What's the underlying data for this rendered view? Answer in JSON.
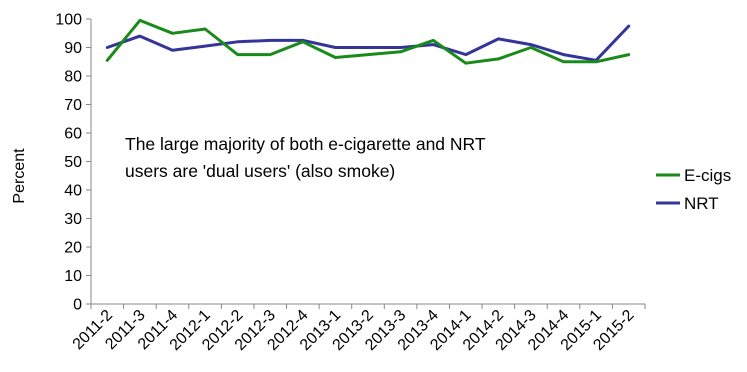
{
  "chart_data": {
    "type": "line",
    "title": "",
    "xlabel": "",
    "ylabel": "Percent",
    "ylim": [
      0,
      100
    ],
    "yticks": [
      0,
      10,
      20,
      30,
      40,
      50,
      60,
      70,
      80,
      90,
      100
    ],
    "grid": false,
    "legend_position": "right",
    "categories": [
      "2011-2",
      "2011-3",
      "2011-4",
      "2012-1",
      "2012-2",
      "2012-3",
      "2012-4",
      "2013-1",
      "2013-2",
      "2013-3",
      "2013-4",
      "2014-1",
      "2014-2",
      "2014-3",
      "2014-4",
      "2015-1",
      "2015-2"
    ],
    "series": [
      {
        "name": "E-cigs",
        "color": "#1a8a1a",
        "values": [
          85.5,
          99.5,
          95,
          96.5,
          87.5,
          87.5,
          92,
          86.5,
          87.5,
          88.5,
          92.5,
          84.5,
          86,
          90,
          85,
          85,
          87.5
        ]
      },
      {
        "name": "NRT",
        "color": "#35349a",
        "values": [
          90,
          94,
          89,
          90.5,
          92,
          92.5,
          92.5,
          90,
          90,
          90,
          91,
          87.5,
          93,
          91,
          87.5,
          85.5,
          97.5
        ]
      }
    ],
    "annotation": {
      "line1": "The large majority of both e-cigarette and NRT",
      "line2": "users are 'dual users' (also smoke)"
    }
  }
}
